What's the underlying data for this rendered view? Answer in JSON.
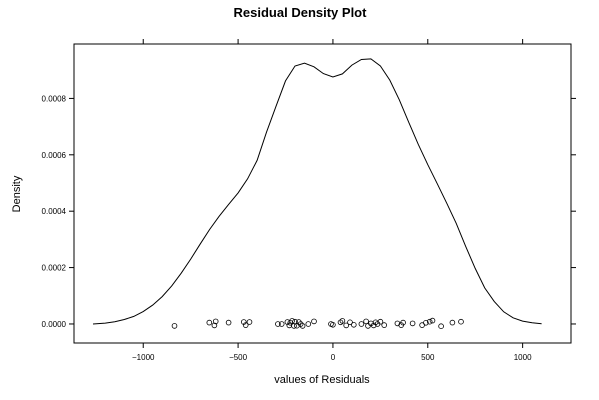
{
  "chart_data": {
    "type": "line",
    "title": "Residual Density Plot",
    "xlabel": "values of Residuals",
    "ylabel": "Density",
    "xlim": [
      -1365,
      1255
    ],
    "ylim": [
      -6.75e-05,
      0.000993
    ],
    "x_ticks": [
      -1000,
      -500,
      0,
      500,
      1000
    ],
    "x_tick_labels": [
      "−1000",
      "−500",
      "0",
      "500",
      "1000"
    ],
    "y_ticks": [
      0.0,
      0.0002,
      0.0004,
      0.0006,
      0.0008
    ],
    "y_tick_labels": [
      "0.0000",
      "0.0002",
      "0.0004",
      "0.0006",
      "0.0008"
    ],
    "grid": false,
    "series": [
      {
        "kind": "density-curve",
        "x": [
          -1265,
          -1200,
          -1150,
          -1100,
          -1050,
          -1000,
          -950,
          -900,
          -850,
          -800,
          -750,
          -700,
          -650,
          -600,
          -550,
          -500,
          -450,
          -400,
          -350,
          -300,
          -250,
          -200,
          -150,
          -100,
          -50,
          0,
          50,
          100,
          150,
          200,
          250,
          300,
          350,
          400,
          450,
          500,
          550,
          600,
          650,
          700,
          750,
          800,
          850,
          900,
          950,
          1000,
          1050,
          1100
        ],
        "y": [
          0.0,
          3e-06,
          8e-06,
          1.6e-05,
          2.7e-05,
          4.4e-05,
          6.7e-05,
          9.7e-05,
          0.000135,
          0.00018,
          0.00023,
          0.000283,
          0.000335,
          0.000382,
          0.000424,
          0.000465,
          0.000515,
          0.00058,
          0.00068,
          0.000772,
          0.000862,
          0.000915,
          0.000925,
          0.000912,
          0.000888,
          0.000876,
          0.000887,
          0.000918,
          0.000938,
          0.00094,
          0.000915,
          0.000865,
          0.000795,
          0.000715,
          0.000637,
          0.000565,
          0.000497,
          0.000428,
          0.000357,
          0.000275,
          0.000197,
          0.000128,
          8e-05,
          4.3e-05,
          2.2e-05,
          1e-05,
          4e-06,
          1e-06
        ]
      },
      {
        "kind": "rug-points",
        "x": [
          -835,
          -652,
          -625,
          -618,
          -550,
          -470,
          -460,
          -440,
          -290,
          -270,
          -240,
          -230,
          -225,
          -215,
          -205,
          -200,
          -190,
          -180,
          -170,
          -160,
          -130,
          -100,
          -10,
          0,
          40,
          50,
          70,
          90,
          110,
          150,
          175,
          185,
          200,
          215,
          225,
          235,
          250,
          270,
          340,
          360,
          370,
          420,
          470,
          490,
          510,
          525,
          570,
          630,
          675
        ],
        "y": [
          -7e-06,
          5e-06,
          -5e-06,
          9e-06,
          5e-06,
          7e-06,
          -4e-06,
          7e-06,
          0.0,
          0.0,
          7e-06,
          -5e-06,
          4e-06,
          1.1e-05,
          -7e-06,
          8e-06,
          -6e-06,
          7e-06,
          0.0,
          -7e-06,
          0.0,
          9e-06,
          0.0,
          -3e-06,
          6e-06,
          1.1e-05,
          -5e-06,
          6e-06,
          -3e-06,
          0.0,
          9e-06,
          -7e-06,
          2e-06,
          -5e-06,
          6e-06,
          0.0,
          8e-06,
          -4e-06,
          2e-06,
          -4e-06,
          5e-06,
          2e-06,
          -4e-06,
          4e-06,
          8e-06,
          1.2e-05,
          -8e-06,
          5e-06,
          8e-06
        ]
      }
    ]
  }
}
